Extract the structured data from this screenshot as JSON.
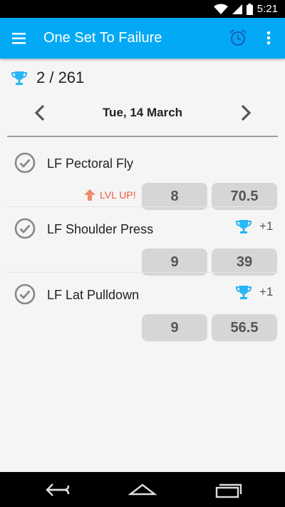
{
  "status_bar": {
    "time": "5:21",
    "icons": [
      "wifi-icon",
      "signal-icon",
      "battery-icon"
    ]
  },
  "app_bar": {
    "title": "One Set To Failure",
    "icons": [
      "menu-icon",
      "alarm-clock-icon",
      "more-vert-icon"
    ]
  },
  "summary": {
    "trophies": "2 / 261",
    "icon": "trophy-icon"
  },
  "date_nav": {
    "date": "Tue, 14 March"
  },
  "exercises": [
    {
      "name": "LF Pectoral Fly",
      "badge": "LVL UP!",
      "reps": "8",
      "weight": "70.5"
    },
    {
      "name": "LF Shoulder Press",
      "plus": "+1",
      "reps": "9",
      "weight": "39"
    },
    {
      "name": "LF Lat Pulldown",
      "plus": "+1",
      "reps": "9",
      "weight": "56.5"
    }
  ],
  "colors": {
    "app_bar": "#03A9F4",
    "trophy": "#29B6F6",
    "level_up": "#EE5A36",
    "value_box": "#D6D6D6"
  }
}
